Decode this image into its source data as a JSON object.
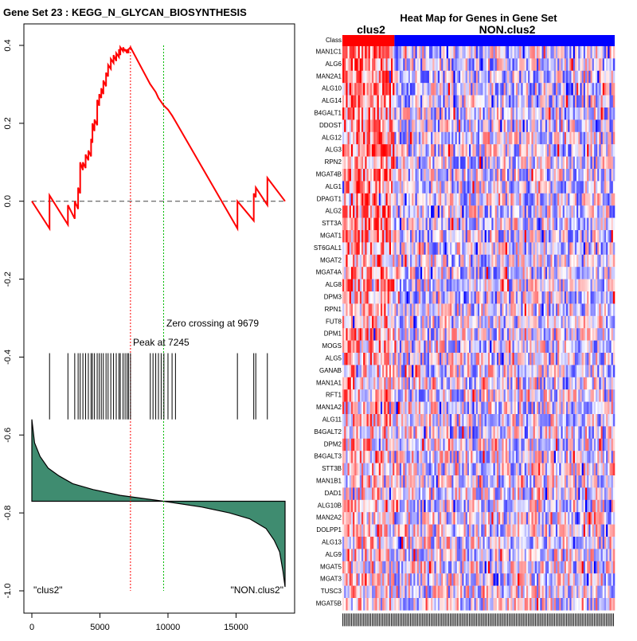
{
  "chart_data": [
    {
      "type": "line",
      "title": "Gene Set  23 : KEGG_N_GLYCAN_BIOSYNTHESIS",
      "xlabel": "",
      "ylabel": "",
      "xlim": [
        0,
        18600
      ],
      "ylim": [
        -1.0,
        0.45
      ],
      "xticks": [
        0,
        5000,
        10000,
        15000
      ],
      "yticks": [
        0.4,
        0.2,
        0.0,
        -0.2,
        -0.4,
        -0.6,
        -0.8,
        -1.0
      ],
      "peak": {
        "x": 7245,
        "label": "Peak at 7245"
      },
      "zero_crossing": {
        "x": 9679,
        "label": "Zero crossing at 9679"
      },
      "class_labels": {
        "left": "\"clus2\"",
        "right": "\"NON.clus2\""
      },
      "hit_positions": [
        1300,
        2650,
        3150,
        3400,
        3550,
        3750,
        3950,
        4150,
        4350,
        4450,
        4600,
        4800,
        4950,
        5100,
        5250,
        5450,
        5600,
        5800,
        6000,
        6200,
        6400,
        6500,
        6700,
        6850,
        7000,
        7100,
        7245,
        8700,
        8900,
        9100,
        9300,
        9500,
        9700,
        10000,
        10300,
        10550,
        15100,
        16300,
        16450,
        17300
      ],
      "es_curve": {
        "x": [
          0,
          1300,
          1301,
          2650,
          2651,
          3150,
          3151,
          3400,
          3401,
          3550,
          3551,
          3750,
          3751,
          3950,
          3951,
          4150,
          4151,
          4350,
          4351,
          4450,
          4451,
          4600,
          4601,
          4800,
          4801,
          4950,
          4951,
          5100,
          5101,
          5250,
          5251,
          5450,
          5451,
          5600,
          5601,
          5800,
          5801,
          6000,
          6001,
          6200,
          6201,
          6400,
          6401,
          6500,
          6501,
          6700,
          6701,
          6850,
          6851,
          7000,
          7001,
          7100,
          7101,
          7245,
          8700,
          8701,
          8900,
          8901,
          9100,
          9101,
          9300,
          9301,
          9500,
          9501,
          9700,
          9701,
          10000,
          10001,
          10300,
          10301,
          10550,
          10551,
          15100,
          15101,
          16300,
          16301,
          16450,
          16451,
          17300,
          17301,
          18600
        ],
        "y": [
          0.0,
          -0.07,
          0.015,
          -0.06,
          -0.01,
          -0.045,
          0.0,
          -0.02,
          0.035,
          0.02,
          0.1,
          0.08,
          0.1,
          0.085,
          0.12,
          0.105,
          0.13,
          0.115,
          0.16,
          0.15,
          0.2,
          0.18,
          0.21,
          0.195,
          0.26,
          0.245,
          0.275,
          0.265,
          0.29,
          0.275,
          0.31,
          0.295,
          0.33,
          0.32,
          0.35,
          0.34,
          0.365,
          0.355,
          0.375,
          0.36,
          0.38,
          0.37,
          0.39,
          0.375,
          0.395,
          0.385,
          0.395,
          0.385,
          0.39,
          0.38,
          0.39,
          0.38,
          0.39,
          0.395,
          0.3,
          0.3,
          0.29,
          0.29,
          0.28,
          0.28,
          0.265,
          0.265,
          0.255,
          0.255,
          0.245,
          0.245,
          0.235,
          0.235,
          0.22,
          0.22,
          0.205,
          0.205,
          -0.07,
          0.0,
          -0.05,
          0.02,
          0.01,
          0.035,
          -0.01,
          0.06,
          0.0
        ]
      },
      "ranked_metric": {
        "x": [
          0,
          200,
          600,
          1200,
          2000,
          3000,
          4500,
          6500,
          9679,
          12500,
          14500,
          16000,
          17200,
          17800,
          18200,
          18450,
          18600
        ],
        "y": [
          -0.56,
          -0.62,
          -0.655,
          -0.685,
          -0.705,
          -0.725,
          -0.74,
          -0.755,
          -0.77,
          -0.785,
          -0.8,
          -0.815,
          -0.84,
          -0.87,
          -0.9,
          -0.95,
          -0.99
        ],
        "baseline": -0.77
      }
    },
    {
      "type": "heatmap",
      "title": "Heat Map for Genes in Gene Set",
      "class_row_label": "Class",
      "groups": [
        {
          "name": "clus2",
          "color": "#ff0000",
          "count": 30
        },
        {
          "name": "NON.clus2",
          "color": "#0000ff",
          "count": 127
        }
      ],
      "genes": [
        "MAN1C1",
        "ALG6",
        "MAN2A1",
        "ALG10",
        "ALG14",
        "B4GALT1",
        "DDOST",
        "ALG12",
        "ALG3",
        "RPN2",
        "MGAT4B",
        "ALG1",
        "DPAGT1",
        "ALG2",
        "STT3A",
        "MGAT1",
        "ST6GAL1",
        "MGAT2",
        "MGAT4A",
        "ALG8",
        "DPM3",
        "RPN1",
        "FUT8",
        "DPM1",
        "MOGS",
        "ALG5",
        "GANAB",
        "MAN1A1",
        "RFT1",
        "MAN1A2",
        "ALG11",
        "B4GALT2",
        "DPM2",
        "B4GALT3",
        "STT3B",
        "MAN1B1",
        "DAD1",
        "ALG10B",
        "MAN2A2",
        "DOLPP1",
        "ALG13",
        "ALG9",
        "MGAT5",
        "MGAT3",
        "TUSC3",
        "MGAT5B"
      ],
      "colors": {
        "high": "#ff0000",
        "low": "#0000ff",
        "mid": "#ffffff"
      }
    }
  ]
}
